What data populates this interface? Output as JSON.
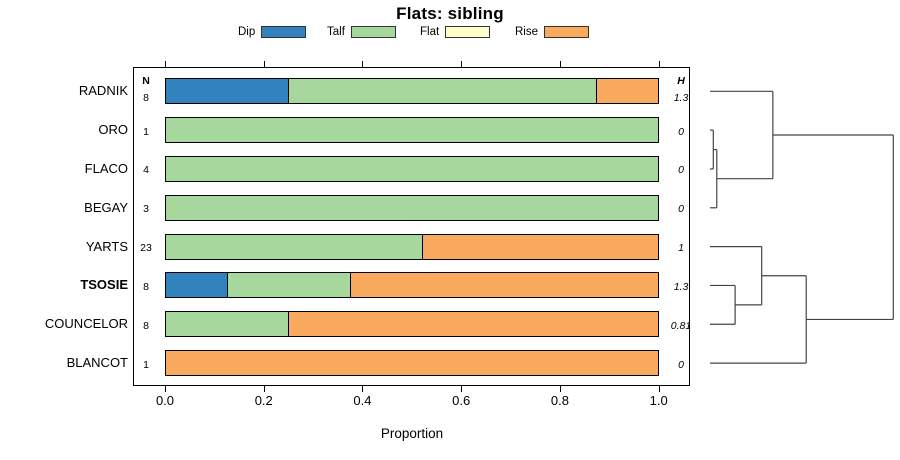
{
  "title": "Flats: sibling",
  "xlabel": "Proportion",
  "chart_data": {
    "type": "bar",
    "variant": "horizontal-stacked-proportion-bars-with-dendrogram",
    "title": "Flats: sibling",
    "xlabel": "Proportion",
    "xlim": [
      0.0,
      1.0
    ],
    "x_ticks": [
      "0.0",
      "0.2",
      "0.4",
      "0.6",
      "0.8",
      "1.0"
    ],
    "x_tick_values": [
      0.0,
      0.2,
      0.4,
      0.6,
      0.8,
      1.0
    ],
    "grid": false,
    "legend_position": "top",
    "legend": [
      {
        "label": "Dip",
        "color": "#3182BD"
      },
      {
        "label": "Talf",
        "color": "#A6D79C"
      },
      {
        "label": "Flat",
        "color": "#FEFEC8"
      },
      {
        "label": "Rise",
        "color": "#FAAA5F"
      }
    ],
    "column_headers": {
      "left": "N",
      "right": "H"
    },
    "rows": [
      {
        "label": "RADNIK",
        "n": "8",
        "h": "1.3",
        "bold": false,
        "segments": [
          {
            "cat": "Dip",
            "value": 0.25
          },
          {
            "cat": "Talf",
            "value": 0.625
          },
          {
            "cat": "Rise",
            "value": 0.125
          }
        ]
      },
      {
        "label": "ORO",
        "n": "1",
        "h": "0",
        "bold": false,
        "segments": [
          {
            "cat": "Talf",
            "value": 1.0
          }
        ]
      },
      {
        "label": "FLACO",
        "n": "4",
        "h": "0",
        "bold": false,
        "segments": [
          {
            "cat": "Talf",
            "value": 1.0
          }
        ]
      },
      {
        "label": "BEGAY",
        "n": "3",
        "h": "0",
        "bold": false,
        "segments": [
          {
            "cat": "Talf",
            "value": 1.0
          }
        ]
      },
      {
        "label": "YARTS",
        "n": "23",
        "h": "1",
        "bold": false,
        "segments": [
          {
            "cat": "Talf",
            "value": 0.522
          },
          {
            "cat": "Rise",
            "value": 0.478
          }
        ]
      },
      {
        "label": "TSOSIE",
        "n": "8",
        "h": "1.3",
        "bold": true,
        "segments": [
          {
            "cat": "Dip",
            "value": 0.125
          },
          {
            "cat": "Talf",
            "value": 0.25
          },
          {
            "cat": "Rise",
            "value": 0.625
          }
        ]
      },
      {
        "label": "COUNCELOR",
        "n": "8",
        "h": "0.81",
        "bold": false,
        "segments": [
          {
            "cat": "Talf",
            "value": 0.25
          },
          {
            "cat": "Rise",
            "value": 0.75
          }
        ]
      },
      {
        "label": "BLANCOT",
        "n": "1",
        "h": "0",
        "bold": false,
        "segments": [
          {
            "cat": "Rise",
            "value": 1.0
          }
        ]
      }
    ],
    "dendrogram": {
      "orientation": "right-of-bars",
      "leaves": [
        "RADNIK",
        "ORO",
        "FLACO",
        "BEGAY",
        "YARTS",
        "TSOSIE",
        "COUNCELOR",
        "BLANCOT"
      ],
      "merges": [
        {
          "a": "ORO",
          "b": "FLACO",
          "height": 0.018
        },
        {
          "a": "#0",
          "b": "BEGAY",
          "height": 0.037
        },
        {
          "a": "RADNIK",
          "b": "#1",
          "height": 0.343
        },
        {
          "a": "TSOSIE",
          "b": "COUNCELOR",
          "height": 0.137
        },
        {
          "a": "YARTS",
          "b": "#3",
          "height": 0.282
        },
        {
          "a": "#4",
          "b": "BLANCOT",
          "height": 0.525
        },
        {
          "a": "#2",
          "b": "#5",
          "height": 1.0
        }
      ],
      "line_color": "#454545"
    }
  }
}
